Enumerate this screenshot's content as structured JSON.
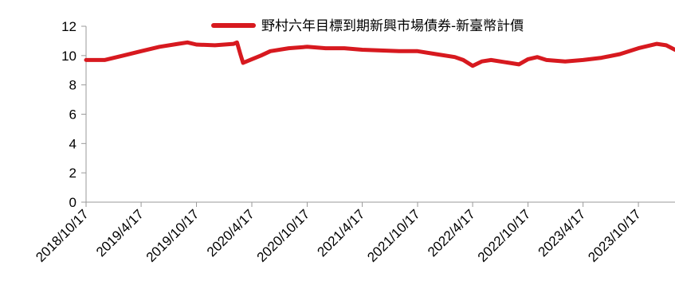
{
  "chart_data": {
    "type": "line",
    "title": "",
    "xlabel": "",
    "ylabel": "",
    "ylim": [
      0,
      12
    ],
    "y_ticks": [
      "0",
      "2",
      "4",
      "6",
      "8",
      "10",
      "12"
    ],
    "x_ticks": [
      "2018/10/17",
      "2019/4/17",
      "2019/10/17",
      "2020/4/17",
      "2020/10/17",
      "2021/4/17",
      "2021/10/17",
      "2022/4/17",
      "2022/10/17",
      "2023/4/17",
      "2023/10/17"
    ],
    "grid": false,
    "legend_position": "top",
    "series": [
      {
        "name": "野村六年目標到期新興市場債券-新臺幣計價",
        "color": "#d7191f",
        "points": [
          [
            "2018/10/17",
            9.7
          ],
          [
            "2018/12/17",
            9.7
          ],
          [
            "2019/2/17",
            10.0
          ],
          [
            "2019/4/17",
            10.3
          ],
          [
            "2019/6/17",
            10.6
          ],
          [
            "2019/8/17",
            10.8
          ],
          [
            "2019/9/17",
            10.9
          ],
          [
            "2019/10/17",
            10.75
          ],
          [
            "2019/12/17",
            10.7
          ],
          [
            "2020/2/17",
            10.8
          ],
          [
            "2020/2/28",
            10.9
          ],
          [
            "2020/3/10",
            10.1
          ],
          [
            "2020/3/19",
            9.5
          ],
          [
            "2020/4/17",
            9.75
          ],
          [
            "2020/5/17",
            10.0
          ],
          [
            "2020/6/17",
            10.3
          ],
          [
            "2020/8/17",
            10.5
          ],
          [
            "2020/10/17",
            10.6
          ],
          [
            "2020/12/17",
            10.5
          ],
          [
            "2021/2/17",
            10.5
          ],
          [
            "2021/4/17",
            10.4
          ],
          [
            "2021/6/17",
            10.35
          ],
          [
            "2021/8/17",
            10.3
          ],
          [
            "2021/10/17",
            10.3
          ],
          [
            "2021/12/17",
            10.1
          ],
          [
            "2022/2/17",
            9.9
          ],
          [
            "2022/3/17",
            9.7
          ],
          [
            "2022/4/17",
            9.3
          ],
          [
            "2022/5/17",
            9.6
          ],
          [
            "2022/6/17",
            9.7
          ],
          [
            "2022/8/17",
            9.5
          ],
          [
            "2022/9/17",
            9.4
          ],
          [
            "2022/10/17",
            9.75
          ],
          [
            "2022/11/17",
            9.9
          ],
          [
            "2022/12/17",
            9.7
          ],
          [
            "2023/2/17",
            9.6
          ],
          [
            "2023/4/17",
            9.7
          ],
          [
            "2023/6/17",
            9.85
          ],
          [
            "2023/8/17",
            10.1
          ],
          [
            "2023/10/17",
            10.5
          ],
          [
            "2023/12/17",
            10.8
          ],
          [
            "2024/1/17",
            10.7
          ],
          [
            "2024/2/15",
            10.4
          ]
        ]
      }
    ]
  }
}
